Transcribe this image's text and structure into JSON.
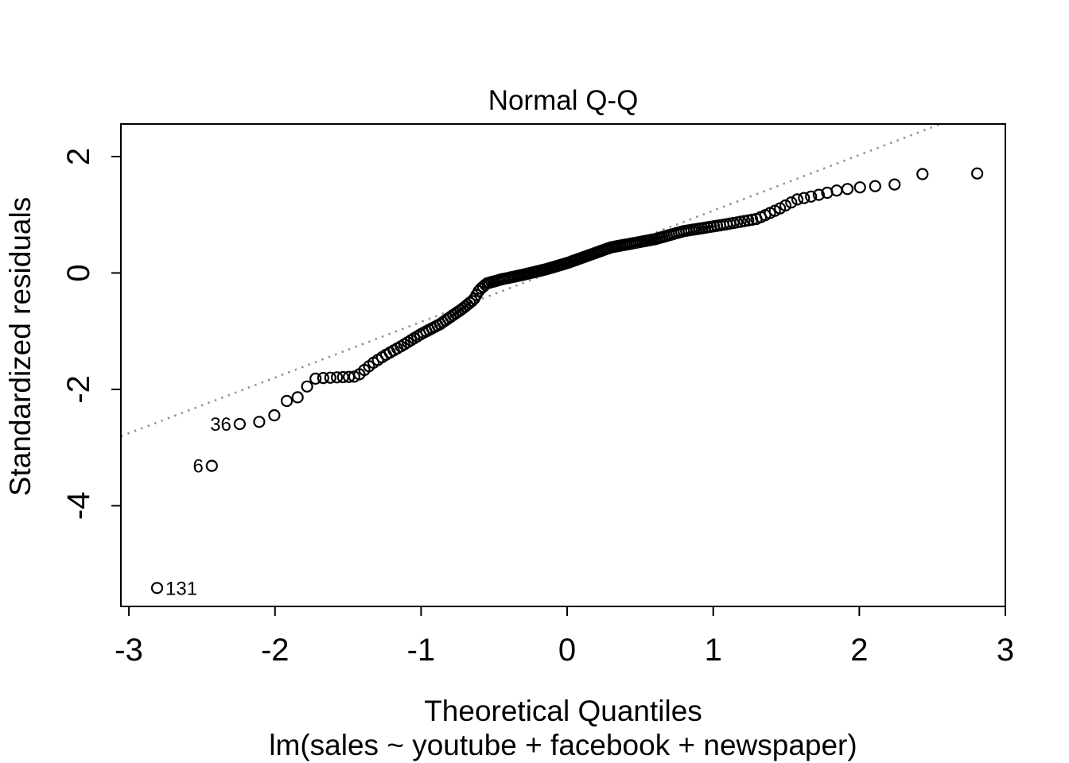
{
  "figure": {
    "background": "#ffffff",
    "foreground": "#000000"
  },
  "chart_data": {
    "type": "scatter",
    "subtype": "normal-qq-plot",
    "title": "Normal Q-Q",
    "xlabel": "Theoretical Quantiles",
    "ylabel": "Standardized residuals",
    "sub_caption": "lm(sales ~ youtube + facebook + newspaper)",
    "x_ticks": [
      -3,
      -2,
      -1,
      0,
      1,
      2,
      3
    ],
    "y_ticks": [
      -4,
      -2,
      0,
      2
    ],
    "xlim": [
      -3.055,
      3.0
    ],
    "ylim": [
      -5.73,
      2.56
    ],
    "grid": false,
    "legend": null,
    "n_points": 200,
    "quantile_offset": 0.5,
    "qq_curve_anchors": {
      "comment": "empirical Q-Q curve read off the plot: theoretical quantile -> standardized residual",
      "x": [
        -2.81,
        -2.43,
        -2.24,
        -2.11,
        -2.0,
        -1.92,
        -1.85,
        -1.78,
        -1.72,
        -1.44,
        -1.39,
        -1.33,
        -1.25,
        -1.13,
        -1.0,
        -0.87,
        -0.72,
        -0.64,
        -0.6,
        -0.55,
        -0.45,
        -0.3,
        -0.15,
        0.0,
        0.3,
        0.6,
        0.8,
        1.05,
        1.3,
        1.45,
        1.57,
        1.7,
        1.85,
        2.0,
        2.24,
        2.43,
        2.81
      ],
      "y": [
        -5.43,
        -3.3,
        -2.59,
        -2.56,
        -2.44,
        -2.2,
        -2.15,
        -1.95,
        -1.81,
        -1.78,
        -1.67,
        -1.55,
        -1.42,
        -1.25,
        -1.05,
        -0.88,
        -0.62,
        -0.46,
        -0.29,
        -0.18,
        -0.11,
        -0.03,
        0.06,
        0.17,
        0.44,
        0.58,
        0.72,
        0.82,
        0.93,
        1.1,
        1.26,
        1.33,
        1.42,
        1.47,
        1.52,
        1.7,
        1.71
      ]
    },
    "outlier_labels": [
      {
        "label": "131",
        "rank": 1,
        "x": -2.81,
        "y": -5.43,
        "side": "right"
      },
      {
        "label": "6",
        "rank": 2,
        "x": -2.43,
        "y": -3.3,
        "side": "left"
      },
      {
        "label": "36",
        "rank": 3,
        "x": -2.24,
        "y": -2.59,
        "side": "left"
      }
    ],
    "reference_line": {
      "slope": 0.956,
      "intercept": 0.115,
      "style": "dotted",
      "color": "#909090"
    },
    "point_style": {
      "shape": "open-circle",
      "radius": 6.5,
      "stroke_width": 2.2,
      "color": "#000000"
    }
  }
}
